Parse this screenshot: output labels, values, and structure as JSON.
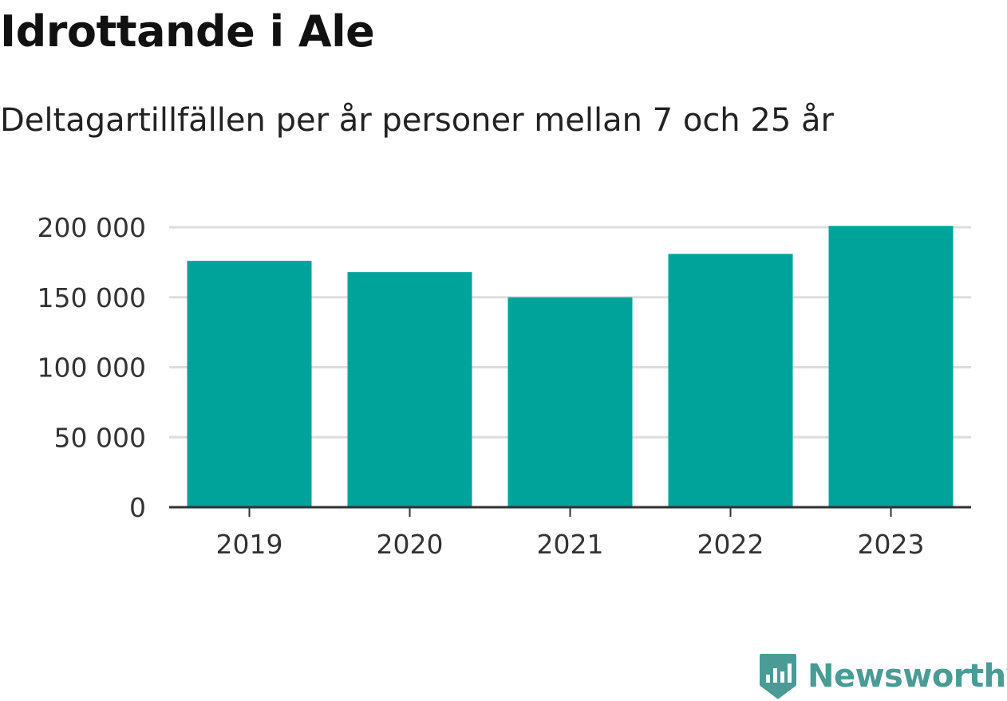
{
  "title": "Idrottande i Ale",
  "subtitle": "Deltagartillfällen per år personer mellan 7 och 25 år",
  "brand": {
    "name": "Newsworthy",
    "logo_icon": "newsworthy-bar-chart-icon",
    "color": "#4a9b95"
  },
  "colors": {
    "bar": "#00a39a",
    "grid": "#dddddd",
    "axis": "#333333"
  },
  "chart_data": {
    "type": "bar",
    "categories": [
      "2019",
      "2020",
      "2021",
      "2022",
      "2023"
    ],
    "values": [
      176000,
      168000,
      150000,
      181000,
      201000
    ],
    "ylim": [
      0,
      200000
    ],
    "yticks": [
      0,
      50000,
      100000,
      150000,
      200000
    ],
    "ytick_labels": [
      "0",
      "50 000",
      "100 000",
      "150 000",
      "200 000"
    ],
    "xlabel": "",
    "ylabel": "",
    "grid": true,
    "legend": "none"
  }
}
